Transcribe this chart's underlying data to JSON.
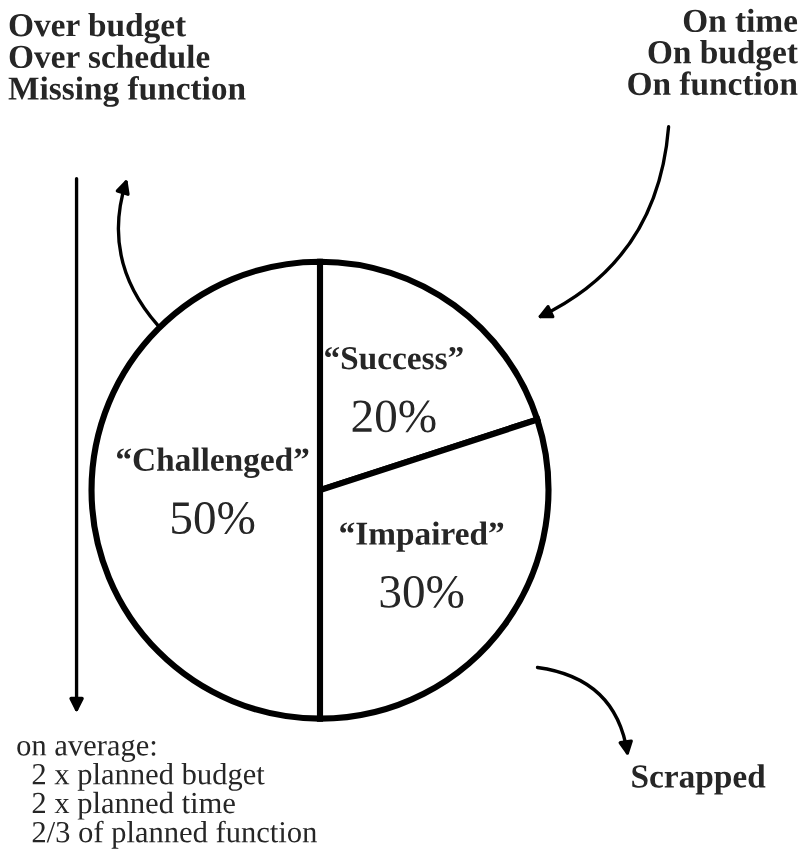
{
  "chart_data": {
    "type": "pie",
    "categories": [
      "“Success”",
      "“Impaired”",
      "“Challenged”"
    ],
    "values": [
      20,
      30,
      50
    ],
    "value_labels": [
      "20%",
      "30%",
      "50%"
    ],
    "colors": [
      "#ffffff",
      "#ffffff",
      "#ffffff"
    ],
    "legend": false,
    "annotations": [
      "Over budget\nOver schedule\nMissing function",
      "On time\nOn budget\nOn function",
      "Scrapped",
      "on average:\n  2 x planned budget\n  2 x planned time\n  2/3 of planned function"
    ]
  }
}
